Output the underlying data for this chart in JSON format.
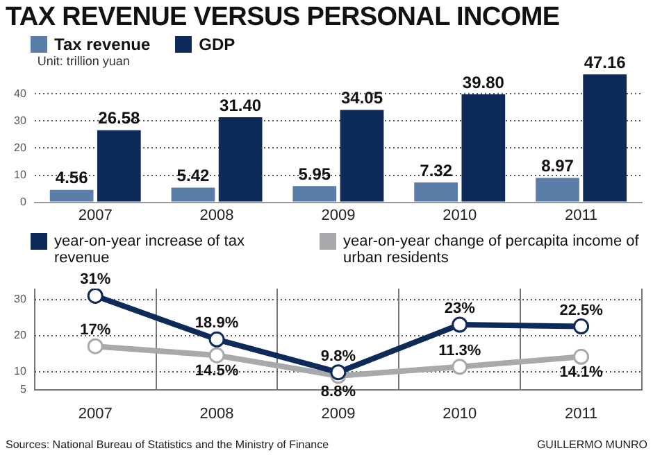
{
  "chart_data": [
    {
      "type": "bar",
      "title": "TAX REVENUE VERSUS PERSONAL INCOME",
      "categories": [
        "2007",
        "2008",
        "2009",
        "2010",
        "2011"
      ],
      "series": [
        {
          "name": "Tax revenue",
          "color": "#5b7ea8",
          "values": [
            4.56,
            5.42,
            5.95,
            7.32,
            8.97
          ],
          "value_labels": [
            "4.56",
            "5.42",
            "5.95",
            "7.32",
            "8.97"
          ]
        },
        {
          "name": "GDP",
          "color": "#0e2a59",
          "values": [
            26.58,
            31.4,
            34.05,
            39.8,
            47.16
          ],
          "value_labels": [
            "26.58",
            "31.40",
            "34.05",
            "39.80",
            "47.16"
          ]
        }
      ],
      "ylim": [
        0,
        48
      ],
      "yticks": [
        0,
        10,
        20,
        30,
        40
      ],
      "grid": "y",
      "legend": "top",
      "annotations": [
        "Unit: trillion yuan"
      ]
    },
    {
      "type": "line",
      "categories": [
        "2007",
        "2008",
        "2009",
        "2010",
        "2011"
      ],
      "series": [
        {
          "name": "year-on-year increase of tax revenue",
          "color": "#0e2a59",
          "values": [
            31,
            18.9,
            9.8,
            23,
            22.5
          ],
          "value_labels": [
            "31%",
            "18.9%",
            "9.8%",
            "23%",
            "22.5%"
          ]
        },
        {
          "name": "year-on-year change of percapita income of urban residents",
          "color": "#a7a9ac",
          "values": [
            17,
            14.5,
            8.8,
            11.3,
            14.1
          ],
          "value_labels": [
            "17%",
            "14.5%",
            "8.8%",
            "11.3%",
            "14.1%"
          ]
        }
      ],
      "ylim": [
        5,
        33
      ],
      "yticks": [
        5,
        10,
        20,
        30
      ],
      "grid": true,
      "legend": "top",
      "marker": "circle",
      "line_style": "solid",
      "annotations": [
        "Sources: National Bureau of Statistics and the Ministry of Finance",
        "GUILLERMO MUNRO"
      ]
    }
  ]
}
